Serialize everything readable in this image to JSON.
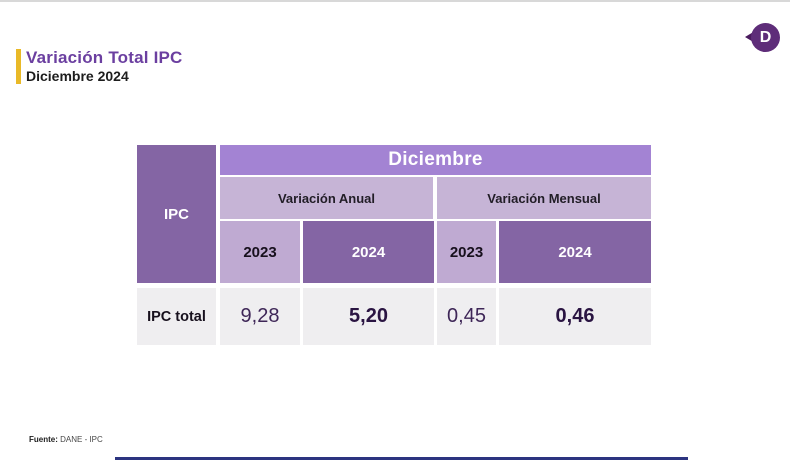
{
  "page": {
    "title": "Variación Total IPC",
    "subtitle": "Diciembre 2024"
  },
  "logo": {
    "letter": "D",
    "name": "DANE speech-bubble logo"
  },
  "table": {
    "corner_label": "IPC",
    "month_header": "Diciembre",
    "group_headers": [
      "Variación Anual",
      "Variación Mensual"
    ],
    "year_headers": [
      "2023",
      "2024",
      "2023",
      "2024"
    ],
    "row": {
      "label": "IPC total",
      "values": [
        "9,28",
        "5,20",
        "0,45",
        "0,46"
      ]
    }
  },
  "footer": {
    "source_label": "Fuente:",
    "source_value": " DANE - IPC"
  },
  "colors": {
    "title_purple": "#6b3fa0",
    "accent_yellow": "#e9b927",
    "month_band": "#a383d3",
    "group_band": "#c6b4d6",
    "year_2023_bg": "#bfaad2",
    "year_2024_bg": "#8465a4",
    "corner_bg": "#8465a4",
    "data_row_bg": "#efeef0",
    "bottom_bar_navy": "#2c3480",
    "logo_purple": "#5e2d79"
  },
  "chart_data": {
    "type": "table",
    "title": "Variación Total IPC",
    "subtitle": "Diciembre 2024",
    "month": "Diciembre",
    "column_groups": [
      {
        "group": "Variación Anual",
        "years": [
          "2023",
          "2024"
        ]
      },
      {
        "group": "Variación Mensual",
        "years": [
          "2023",
          "2024"
        ]
      }
    ],
    "rows": [
      {
        "label": "IPC total",
        "variacion_anual": {
          "2023": 9.28,
          "2024": 5.2
        },
        "variacion_mensual": {
          "2023": 0.45,
          "2024": 0.46
        }
      }
    ],
    "emphasis": "2024 values shown bold on dark purple columns",
    "source": "Fuente: DANE - IPC"
  }
}
